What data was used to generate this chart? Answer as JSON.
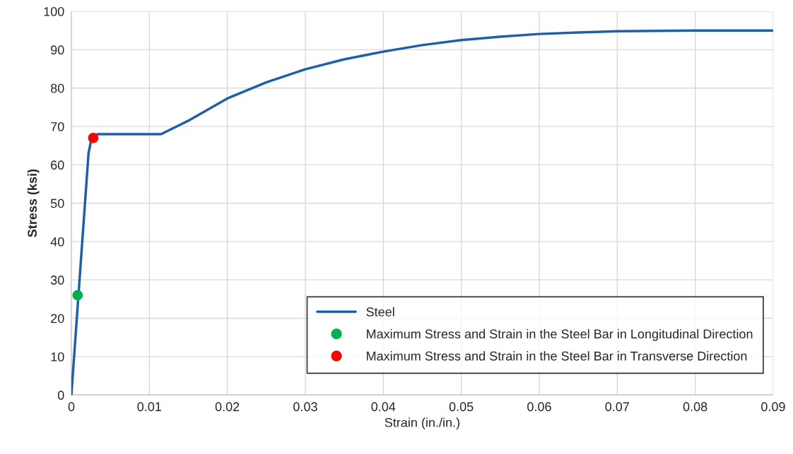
{
  "chart_data": {
    "type": "line",
    "xlabel": "Strain (in./in.)",
    "ylabel": "Stress (ksi)",
    "xlim": [
      0,
      0.09
    ],
    "xticks": [
      0,
      0.01,
      0.02,
      0.03,
      0.04,
      0.05,
      0.06,
      0.07,
      0.08,
      0.09
    ],
    "ylim": [
      0,
      100
    ],
    "yticks": [
      0,
      10,
      20,
      30,
      40,
      50,
      60,
      70,
      80,
      90,
      100
    ],
    "grid": true,
    "legend": "bottom right",
    "series": [
      {
        "name": "Steel",
        "color": "#1f5fa8",
        "marker": "none",
        "x": [
          0,
          0.0022,
          0.0025,
          0.003,
          0.0035,
          0.0115,
          0.015,
          0.02,
          0.025,
          0.03,
          0.035,
          0.04,
          0.045,
          0.05,
          0.055,
          0.06,
          0.065,
          0.07,
          0.08,
          0.09
        ],
        "values": [
          0,
          63,
          66,
          67.8,
          68,
          68,
          71.5,
          77.3,
          81.5,
          84.9,
          87.5,
          89.5,
          91.2,
          92.5,
          93.4,
          94.1,
          94.5,
          94.8,
          95,
          95
        ]
      },
      {
        "name": "Maximum Stress and Strain in the Steel Bar in Longitudinal Direction",
        "type": "scatter",
        "color": "#00b050",
        "marker": "circle",
        "x": [
          0.0008
        ],
        "values": [
          26
        ]
      },
      {
        "name": "Maximum Stress and Strain in the Steel Bar in Transverse Direction",
        "type": "scatter",
        "color": "#ff0000",
        "marker": "circle",
        "x": [
          0.0028
        ],
        "values": [
          67
        ]
      }
    ]
  }
}
